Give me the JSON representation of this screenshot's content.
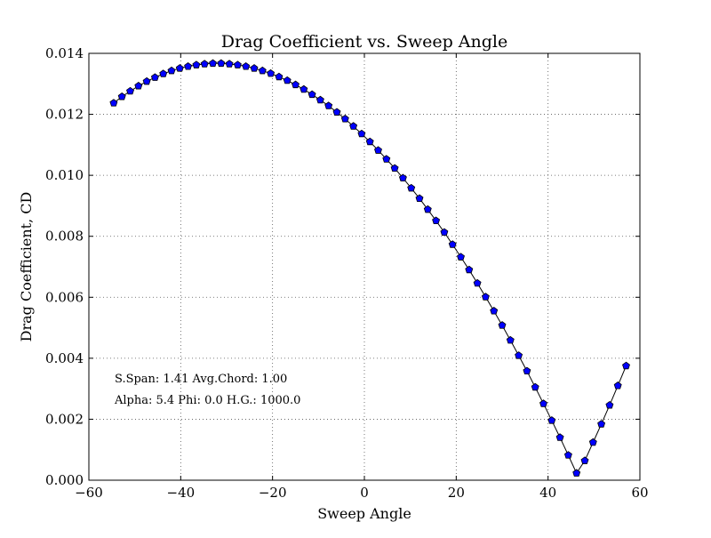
{
  "chart_data": {
    "type": "line",
    "title": "Drag Coefficient vs. Sweep Angle",
    "xlabel": "Sweep Angle",
    "ylabel": "Drag Coefficient, CD",
    "xlim": [
      -60,
      60
    ],
    "ylim": [
      0,
      0.014
    ],
    "xticks": [
      -60,
      -40,
      -20,
      0,
      20,
      40,
      60
    ],
    "xtick_labels": [
      "−60",
      "−40",
      "−20",
      "0",
      "20",
      "40",
      "60"
    ],
    "yticks": [
      0,
      0.002,
      0.004,
      0.006,
      0.008,
      0.01,
      0.012,
      0.014
    ],
    "ytick_labels": [
      "0.000",
      "0.002",
      "0.004",
      "0.006",
      "0.008",
      "0.010",
      "0.012",
      "0.014"
    ],
    "grid": true,
    "line_color": "#000000",
    "marker": "pentagon",
    "marker_color": "#0000ff",
    "annotations": [
      "S.Span: 1.41 Avg.Chord: 1.00",
      "Alpha:  5.4 Phi:  0.0 H.G.: 1000.0"
    ],
    "x": [
      -54.6,
      -52.8,
      -51.0,
      -49.2,
      -47.4,
      -45.6,
      -43.8,
      -42.0,
      -40.2,
      -38.4,
      -36.6,
      -34.8,
      -33.0,
      -31.2,
      -29.4,
      -27.6,
      -25.8,
      -24.0,
      -22.2,
      -20.4,
      -18.6,
      -16.8,
      -15.0,
      -13.2,
      -11.4,
      -9.6,
      -7.8,
      -6.0,
      -4.2,
      -2.4,
      -0.6,
      1.2,
      3.0,
      4.8,
      6.6,
      8.4,
      10.2,
      12.0,
      13.8,
      15.6,
      17.4,
      19.2,
      21.0,
      22.8,
      24.6,
      26.4,
      28.2,
      30.0,
      31.8,
      33.6,
      35.4,
      37.2,
      39.0,
      40.8,
      42.6,
      44.4,
      46.2,
      48.0,
      49.8,
      51.6,
      53.4,
      55.2,
      57.0
    ],
    "y": [
      0.01237,
      0.01258,
      0.01276,
      0.01293,
      0.01308,
      0.01321,
      0.01333,
      0.01343,
      0.01351,
      0.01357,
      0.01362,
      0.01365,
      0.01367,
      0.01367,
      0.01365,
      0.01362,
      0.01357,
      0.01351,
      0.01343,
      0.01334,
      0.01323,
      0.01311,
      0.01297,
      0.01282,
      0.01265,
      0.01247,
      0.01228,
      0.01207,
      0.01185,
      0.01161,
      0.01136,
      0.0111,
      0.01082,
      0.01053,
      0.01023,
      0.00991,
      0.00958,
      0.00924,
      0.00888,
      0.00851,
      0.00813,
      0.00773,
      0.00732,
      0.0069,
      0.00646,
      0.00601,
      0.00555,
      0.00508,
      0.00459,
      0.00409,
      0.00358,
      0.00305,
      0.00251,
      0.00196,
      0.0014,
      0.00082,
      0.00023,
      0.00064,
      0.00124,
      0.00184,
      0.00246,
      0.0031,
      0.00375
    ]
  }
}
